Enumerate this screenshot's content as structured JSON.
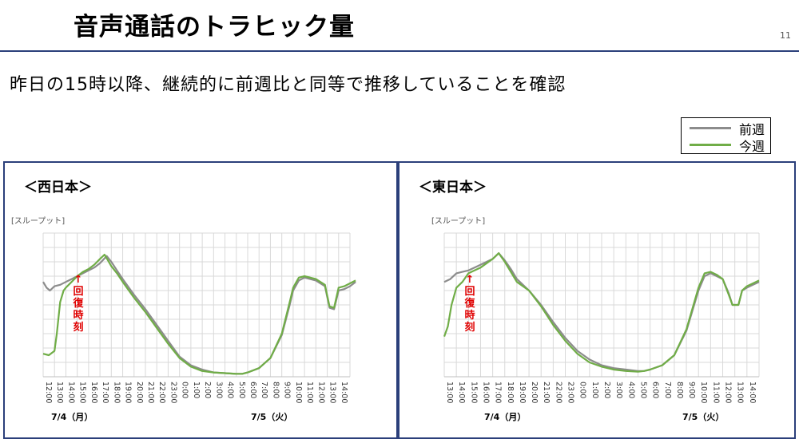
{
  "header": {
    "title": "音声通話のトラヒック量",
    "page_number": "11",
    "subtitle": "昨日の15時以降、継続的に前週比と同等で推移していることを確認"
  },
  "legend": [
    {
      "label": "前週",
      "color": "#8c8c8c"
    },
    {
      "label": "今週",
      "color": "#70ad47"
    }
  ],
  "chart_data": [
    {
      "type": "line",
      "title": "＜西日本＞",
      "ylabel": "[スループット]",
      "annotation": "↑回復時刻",
      "x_tick_labels": [
        "12:00",
        "13:00",
        "14:00",
        "15:00",
        "16:00",
        "17:00",
        "18:00",
        "19:00",
        "20:00",
        "21:00",
        "22:00",
        "23:00",
        "0:00",
        "1:00",
        "2:00",
        "3:00",
        "4:00",
        "5:00",
        "6:00",
        "7:00",
        "8:00",
        "9:00",
        "10:00",
        "11:00",
        "12:00",
        "13:00",
        "14:00"
      ],
      "date_labels": [
        "7/4（月）",
        "7/5（火）"
      ],
      "x_unit": "hours since 7/4 12:00",
      "ylim": [
        0,
        100
      ],
      "grid": true,
      "series": [
        {
          "name": "前週",
          "color": "#8c8c8c",
          "points": [
            [
              0,
              66
            ],
            [
              0.3,
              62
            ],
            [
              0.6,
              60
            ],
            [
              1,
              63
            ],
            [
              1.5,
              64
            ],
            [
              2,
              66
            ],
            [
              2.5,
              68
            ],
            [
              3,
              70
            ],
            [
              3.5,
              72
            ],
            [
              4,
              74
            ],
            [
              4.5,
              76
            ],
            [
              5,
              79
            ],
            [
              5.6,
              84
            ],
            [
              6,
              80
            ],
            [
              6.5,
              74
            ],
            [
              7,
              68
            ],
            [
              8,
              57
            ],
            [
              9,
              47
            ],
            [
              10,
              36
            ],
            [
              11,
              25
            ],
            [
              12,
              14
            ],
            [
              13,
              8
            ],
            [
              14,
              5
            ],
            [
              15,
              3
            ],
            [
              16,
              2.5
            ],
            [
              17,
              2
            ],
            [
              17.5,
              2
            ],
            [
              18,
              3
            ],
            [
              19,
              6
            ],
            [
              20,
              13
            ],
            [
              21,
              29
            ],
            [
              21.7,
              50
            ],
            [
              22,
              60
            ],
            [
              22.5,
              67
            ],
            [
              23,
              69
            ],
            [
              24,
              67
            ],
            [
              24.8,
              63
            ],
            [
              25.2,
              48
            ],
            [
              25.6,
              47
            ],
            [
              26,
              60
            ],
            [
              26.5,
              61
            ],
            [
              27,
              63
            ],
            [
              27.5,
              66
            ]
          ]
        },
        {
          "name": "今週",
          "color": "#70ad47",
          "points": [
            [
              0,
              16
            ],
            [
              0.5,
              15
            ],
            [
              1,
              18
            ],
            [
              1.2,
              30
            ],
            [
              1.5,
              52
            ],
            [
              1.8,
              60
            ],
            [
              2,
              62
            ],
            [
              2.5,
              66
            ],
            [
              3,
              70
            ],
            [
              3.5,
              73
            ],
            [
              4,
              75
            ],
            [
              4.5,
              78
            ],
            [
              5,
              82
            ],
            [
              5.4,
              85
            ],
            [
              5.7,
              81
            ],
            [
              6,
              77
            ],
            [
              6.5,
              72
            ],
            [
              7,
              66
            ],
            [
              8,
              55
            ],
            [
              9,
              45
            ],
            [
              10,
              34
            ],
            [
              11,
              23
            ],
            [
              12,
              13
            ],
            [
              13,
              7
            ],
            [
              14,
              4
            ],
            [
              15,
              3
            ],
            [
              16,
              2.5
            ],
            [
              17,
              2
            ],
            [
              17.5,
              2
            ],
            [
              18,
              3
            ],
            [
              19,
              6
            ],
            [
              20,
              13
            ],
            [
              21,
              30
            ],
            [
              21.7,
              52
            ],
            [
              22,
              62
            ],
            [
              22.5,
              69
            ],
            [
              23,
              70
            ],
            [
              24,
              68
            ],
            [
              24.8,
              64
            ],
            [
              25.2,
              49
            ],
            [
              25.6,
              48
            ],
            [
              26,
              62
            ],
            [
              26.5,
              63
            ],
            [
              27,
              65
            ],
            [
              27.5,
              67
            ]
          ]
        }
      ]
    },
    {
      "type": "line",
      "title": "＜東日本＞",
      "ylabel": "[スループット]",
      "annotation": "↑回復時刻",
      "x_tick_labels": [
        "13:00",
        "14:00",
        "15:00",
        "16:00",
        "17:00",
        "18:00",
        "19:00",
        "20:00",
        "21:00",
        "22:00",
        "23:00",
        "0:00",
        "1:00",
        "2:00",
        "3:00",
        "4:00",
        "5:00",
        "6:00",
        "7:00",
        "8:00",
        "9:00",
        "10:00",
        "11:00",
        "12:00",
        "13:00",
        "14:00"
      ],
      "date_labels": [
        "7/4（月）",
        "7/5（火）"
      ],
      "x_unit": "hours since 7/4 13:00",
      "ylim": [
        0,
        100
      ],
      "grid": true,
      "series": [
        {
          "name": "前週",
          "color": "#8c8c8c",
          "points": [
            [
              0,
              66
            ],
            [
              0.5,
              68
            ],
            [
              1,
              72
            ],
            [
              1.5,
              73
            ],
            [
              2,
              74
            ],
            [
              2.5,
              76
            ],
            [
              3,
              78
            ],
            [
              3.5,
              80
            ],
            [
              4,
              82
            ],
            [
              4.5,
              86
            ],
            [
              5,
              81
            ],
            [
              5.5,
              75
            ],
            [
              6,
              68
            ],
            [
              7,
              60
            ],
            [
              8,
              50
            ],
            [
              9,
              38
            ],
            [
              10,
              27
            ],
            [
              11,
              18
            ],
            [
              12,
              12
            ],
            [
              13,
              8
            ],
            [
              14,
              6
            ],
            [
              15,
              5
            ],
            [
              16,
              4
            ],
            [
              16.5,
              4
            ],
            [
              17,
              5
            ],
            [
              18,
              8
            ],
            [
              19,
              15
            ],
            [
              20,
              32
            ],
            [
              21,
              60
            ],
            [
              21.5,
              70
            ],
            [
              22,
              72
            ],
            [
              22.5,
              70
            ],
            [
              23,
              68
            ],
            [
              23.5,
              58
            ],
            [
              23.8,
              50
            ],
            [
              24.3,
              50
            ],
            [
              24.6,
              60
            ],
            [
              25,
              62
            ],
            [
              25.5,
              64
            ],
            [
              26,
              66
            ]
          ]
        },
        {
          "name": "今週",
          "color": "#70ad47",
          "points": [
            [
              0,
              28
            ],
            [
              0.3,
              35
            ],
            [
              0.6,
              50
            ],
            [
              1,
              62
            ],
            [
              1.5,
              66
            ],
            [
              2,
              72
            ],
            [
              2.5,
              74
            ],
            [
              3,
              76
            ],
            [
              3.5,
              79
            ],
            [
              4,
              82
            ],
            [
              4.5,
              86
            ],
            [
              5,
              80
            ],
            [
              5.5,
              73
            ],
            [
              6,
              66
            ],
            [
              7,
              60
            ],
            [
              8,
              49
            ],
            [
              9,
              36
            ],
            [
              10,
              25
            ],
            [
              11,
              16
            ],
            [
              12,
              10
            ],
            [
              13,
              7
            ],
            [
              14,
              5
            ],
            [
              15,
              4
            ],
            [
              16,
              3.5
            ],
            [
              16.5,
              4
            ],
            [
              17,
              5
            ],
            [
              18,
              8
            ],
            [
              19,
              15
            ],
            [
              20,
              33
            ],
            [
              21,
              62
            ],
            [
              21.5,
              72
            ],
            [
              22,
              73
            ],
            [
              22.5,
              71
            ],
            [
              23,
              68
            ],
            [
              23.5,
              57
            ],
            [
              23.8,
              50
            ],
            [
              24.3,
              50
            ],
            [
              24.6,
              60
            ],
            [
              25,
              63
            ],
            [
              25.5,
              65
            ],
            [
              26,
              67
            ]
          ]
        }
      ]
    }
  ]
}
